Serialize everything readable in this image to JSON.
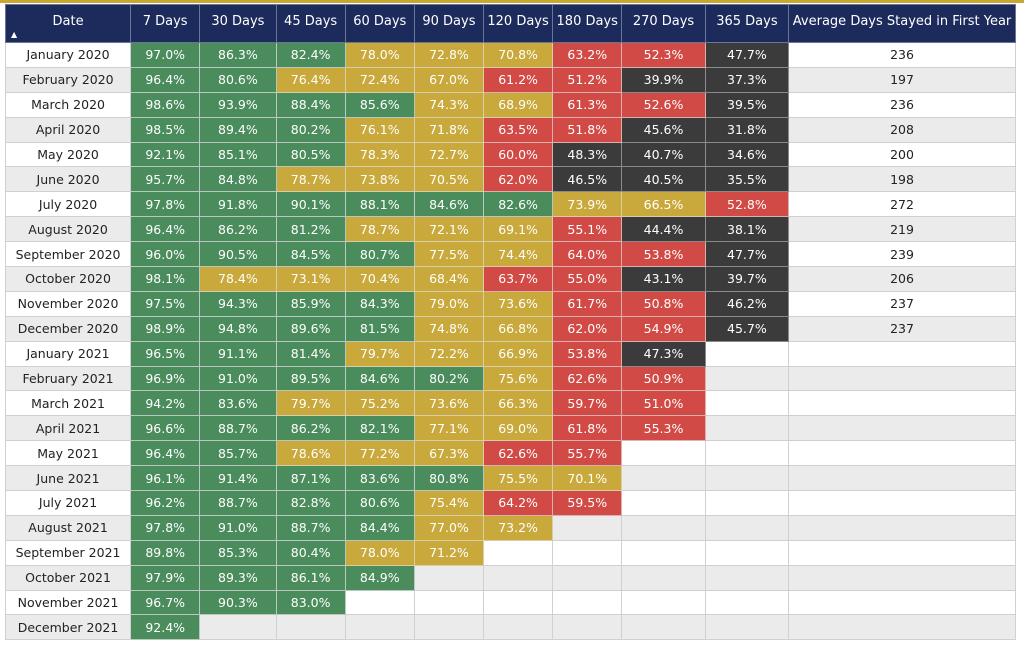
{
  "table": {
    "headers": [
      "Date",
      "7 Days",
      "30 Days",
      "45 Days",
      "60 Days",
      "90 Days",
      "120 Days",
      "180 Days",
      "270 Days",
      "365 Days",
      "Average Days Stayed in First Year"
    ],
    "sort_indicator": "▲",
    "legend_colors": {
      "green": "#4a8c5c",
      "yellow": "#c9a93c",
      "red": "#d24a45",
      "dark": "#3b3b3b",
      "header": "#1c2a5c"
    },
    "rows": [
      {
        "date": "January 2020",
        "cells": [
          [
            "97.0%",
            "g"
          ],
          [
            "86.3%",
            "g"
          ],
          [
            "82.4%",
            "g"
          ],
          [
            "78.0%",
            "y"
          ],
          [
            "72.8%",
            "y"
          ],
          [
            "70.8%",
            "y"
          ],
          [
            "63.2%",
            "r"
          ],
          [
            "52.3%",
            "r"
          ],
          [
            "47.7%",
            "k"
          ]
        ],
        "avg": "236"
      },
      {
        "date": "February 2020",
        "cells": [
          [
            "96.4%",
            "g"
          ],
          [
            "80.6%",
            "g"
          ],
          [
            "76.4%",
            "y"
          ],
          [
            "72.4%",
            "y"
          ],
          [
            "67.0%",
            "y"
          ],
          [
            "61.2%",
            "r"
          ],
          [
            "51.2%",
            "r"
          ],
          [
            "39.9%",
            "k"
          ],
          [
            "37.3%",
            "k"
          ]
        ],
        "avg": "197"
      },
      {
        "date": "March 2020",
        "cells": [
          [
            "98.6%",
            "g"
          ],
          [
            "93.9%",
            "g"
          ],
          [
            "88.4%",
            "g"
          ],
          [
            "85.6%",
            "g"
          ],
          [
            "74.3%",
            "y"
          ],
          [
            "68.9%",
            "y"
          ],
          [
            "61.3%",
            "r"
          ],
          [
            "52.6%",
            "r"
          ],
          [
            "39.5%",
            "k"
          ]
        ],
        "avg": "236"
      },
      {
        "date": "April 2020",
        "cells": [
          [
            "98.5%",
            "g"
          ],
          [
            "89.4%",
            "g"
          ],
          [
            "80.2%",
            "g"
          ],
          [
            "76.1%",
            "y"
          ],
          [
            "71.8%",
            "y"
          ],
          [
            "63.5%",
            "r"
          ],
          [
            "51.8%",
            "r"
          ],
          [
            "45.6%",
            "k"
          ],
          [
            "31.8%",
            "k"
          ]
        ],
        "avg": "208"
      },
      {
        "date": "May 2020",
        "cells": [
          [
            "92.1%",
            "g"
          ],
          [
            "85.1%",
            "g"
          ],
          [
            "80.5%",
            "g"
          ],
          [
            "78.3%",
            "y"
          ],
          [
            "72.7%",
            "y"
          ],
          [
            "60.0%",
            "r"
          ],
          [
            "48.3%",
            "k"
          ],
          [
            "40.7%",
            "k"
          ],
          [
            "34.6%",
            "k"
          ]
        ],
        "avg": "200"
      },
      {
        "date": "June 2020",
        "cells": [
          [
            "95.7%",
            "g"
          ],
          [
            "84.8%",
            "g"
          ],
          [
            "78.7%",
            "y"
          ],
          [
            "73.8%",
            "y"
          ],
          [
            "70.5%",
            "y"
          ],
          [
            "62.0%",
            "r"
          ],
          [
            "46.5%",
            "k"
          ],
          [
            "40.5%",
            "k"
          ],
          [
            "35.5%",
            "k"
          ]
        ],
        "avg": "198"
      },
      {
        "date": "July 2020",
        "cells": [
          [
            "97.8%",
            "g"
          ],
          [
            "91.8%",
            "g"
          ],
          [
            "90.1%",
            "g"
          ],
          [
            "88.1%",
            "g"
          ],
          [
            "84.6%",
            "g"
          ],
          [
            "82.6%",
            "g"
          ],
          [
            "73.9%",
            "y"
          ],
          [
            "66.5%",
            "y"
          ],
          [
            "52.8%",
            "r"
          ]
        ],
        "avg": "272"
      },
      {
        "date": "August 2020",
        "cells": [
          [
            "96.4%",
            "g"
          ],
          [
            "86.2%",
            "g"
          ],
          [
            "81.2%",
            "g"
          ],
          [
            "78.7%",
            "y"
          ],
          [
            "72.1%",
            "y"
          ],
          [
            "69.1%",
            "y"
          ],
          [
            "55.1%",
            "r"
          ],
          [
            "44.4%",
            "k"
          ],
          [
            "38.1%",
            "k"
          ]
        ],
        "avg": "219"
      },
      {
        "date": "September 2020",
        "cells": [
          [
            "96.0%",
            "g"
          ],
          [
            "90.5%",
            "g"
          ],
          [
            "84.5%",
            "g"
          ],
          [
            "80.7%",
            "g"
          ],
          [
            "77.5%",
            "y"
          ],
          [
            "74.4%",
            "y"
          ],
          [
            "64.0%",
            "r"
          ],
          [
            "53.8%",
            "r"
          ],
          [
            "47.7%",
            "k"
          ]
        ],
        "avg": "239"
      },
      {
        "date": "October 2020",
        "cells": [
          [
            "98.1%",
            "g"
          ],
          [
            "78.4%",
            "y"
          ],
          [
            "73.1%",
            "y"
          ],
          [
            "70.4%",
            "y"
          ],
          [
            "68.4%",
            "y"
          ],
          [
            "63.7%",
            "r"
          ],
          [
            "55.0%",
            "r"
          ],
          [
            "43.1%",
            "k"
          ],
          [
            "39.7%",
            "k"
          ]
        ],
        "avg": "206"
      },
      {
        "date": "November 2020",
        "cells": [
          [
            "97.5%",
            "g"
          ],
          [
            "94.3%",
            "g"
          ],
          [
            "85.9%",
            "g"
          ],
          [
            "84.3%",
            "g"
          ],
          [
            "79.0%",
            "y"
          ],
          [
            "73.6%",
            "y"
          ],
          [
            "61.7%",
            "r"
          ],
          [
            "50.8%",
            "r"
          ],
          [
            "46.2%",
            "k"
          ]
        ],
        "avg": "237"
      },
      {
        "date": "December 2020",
        "cells": [
          [
            "98.9%",
            "g"
          ],
          [
            "94.8%",
            "g"
          ],
          [
            "89.6%",
            "g"
          ],
          [
            "81.5%",
            "g"
          ],
          [
            "74.8%",
            "y"
          ],
          [
            "66.8%",
            "y"
          ],
          [
            "62.0%",
            "r"
          ],
          [
            "54.9%",
            "r"
          ],
          [
            "45.7%",
            "k"
          ]
        ],
        "avg": "237"
      },
      {
        "date": "January 2021",
        "cells": [
          [
            "96.5%",
            "g"
          ],
          [
            "91.1%",
            "g"
          ],
          [
            "81.4%",
            "g"
          ],
          [
            "79.7%",
            "y"
          ],
          [
            "72.2%",
            "y"
          ],
          [
            "66.9%",
            "y"
          ],
          [
            "53.8%",
            "r"
          ],
          [
            "47.3%",
            "k"
          ],
          [
            "",
            ""
          ]
        ],
        "avg": ""
      },
      {
        "date": "February 2021",
        "cells": [
          [
            "96.9%",
            "g"
          ],
          [
            "91.0%",
            "g"
          ],
          [
            "89.5%",
            "g"
          ],
          [
            "84.6%",
            "g"
          ],
          [
            "80.2%",
            "g"
          ],
          [
            "75.6%",
            "y"
          ],
          [
            "62.6%",
            "r"
          ],
          [
            "50.9%",
            "r"
          ],
          [
            "",
            ""
          ]
        ],
        "avg": ""
      },
      {
        "date": "March 2021",
        "cells": [
          [
            "94.2%",
            "g"
          ],
          [
            "83.6%",
            "g"
          ],
          [
            "79.7%",
            "y"
          ],
          [
            "75.2%",
            "y"
          ],
          [
            "73.6%",
            "y"
          ],
          [
            "66.3%",
            "y"
          ],
          [
            "59.7%",
            "r"
          ],
          [
            "51.0%",
            "r"
          ],
          [
            "",
            ""
          ]
        ],
        "avg": ""
      },
      {
        "date": "April 2021",
        "cells": [
          [
            "96.6%",
            "g"
          ],
          [
            "88.7%",
            "g"
          ],
          [
            "86.2%",
            "g"
          ],
          [
            "82.1%",
            "g"
          ],
          [
            "77.1%",
            "y"
          ],
          [
            "69.0%",
            "y"
          ],
          [
            "61.8%",
            "r"
          ],
          [
            "55.3%",
            "r"
          ],
          [
            "",
            ""
          ]
        ],
        "avg": ""
      },
      {
        "date": "May 2021",
        "cells": [
          [
            "96.4%",
            "g"
          ],
          [
            "85.7%",
            "g"
          ],
          [
            "78.6%",
            "y"
          ],
          [
            "77.2%",
            "y"
          ],
          [
            "67.3%",
            "y"
          ],
          [
            "62.6%",
            "r"
          ],
          [
            "55.7%",
            "r"
          ],
          [
            "",
            ""
          ],
          [
            "",
            ""
          ]
        ],
        "avg": ""
      },
      {
        "date": "June 2021",
        "cells": [
          [
            "96.1%",
            "g"
          ],
          [
            "91.4%",
            "g"
          ],
          [
            "87.1%",
            "g"
          ],
          [
            "83.6%",
            "g"
          ],
          [
            "80.8%",
            "g"
          ],
          [
            "75.5%",
            "y"
          ],
          [
            "70.1%",
            "y"
          ],
          [
            "",
            ""
          ],
          [
            "",
            ""
          ]
        ],
        "avg": ""
      },
      {
        "date": "July 2021",
        "cells": [
          [
            "96.2%",
            "g"
          ],
          [
            "88.7%",
            "g"
          ],
          [
            "82.8%",
            "g"
          ],
          [
            "80.6%",
            "g"
          ],
          [
            "75.4%",
            "y"
          ],
          [
            "64.2%",
            "r"
          ],
          [
            "59.5%",
            "r"
          ],
          [
            "",
            ""
          ],
          [
            "",
            ""
          ]
        ],
        "avg": ""
      },
      {
        "date": "August 2021",
        "cells": [
          [
            "97.8%",
            "g"
          ],
          [
            "91.0%",
            "g"
          ],
          [
            "88.7%",
            "g"
          ],
          [
            "84.4%",
            "g"
          ],
          [
            "77.0%",
            "y"
          ],
          [
            "73.2%",
            "y"
          ],
          [
            "",
            ""
          ],
          [
            "",
            ""
          ],
          [
            "",
            ""
          ]
        ],
        "avg": ""
      },
      {
        "date": "September 2021",
        "cells": [
          [
            "89.8%",
            "g"
          ],
          [
            "85.3%",
            "g"
          ],
          [
            "80.4%",
            "g"
          ],
          [
            "78.0%",
            "y"
          ],
          [
            "71.2%",
            "y"
          ],
          [
            "",
            ""
          ],
          [
            "",
            ""
          ],
          [
            "",
            ""
          ],
          [
            "",
            ""
          ]
        ],
        "avg": ""
      },
      {
        "date": "October 2021",
        "cells": [
          [
            "97.9%",
            "g"
          ],
          [
            "89.3%",
            "g"
          ],
          [
            "86.1%",
            "g"
          ],
          [
            "84.9%",
            "g"
          ],
          [
            "",
            ""
          ],
          [
            "",
            ""
          ],
          [
            "",
            ""
          ],
          [
            "",
            ""
          ],
          [
            "",
            ""
          ]
        ],
        "avg": ""
      },
      {
        "date": "November 2021",
        "cells": [
          [
            "96.7%",
            "g"
          ],
          [
            "90.3%",
            "g"
          ],
          [
            "83.0%",
            "g"
          ],
          [
            "",
            ""
          ],
          [
            "",
            ""
          ],
          [
            "",
            ""
          ],
          [
            "",
            ""
          ],
          [
            "",
            ""
          ],
          [
            "",
            ""
          ]
        ],
        "avg": ""
      },
      {
        "date": "December 2021",
        "cells": [
          [
            "92.4%",
            "g"
          ],
          [
            "",
            ""
          ],
          [
            "",
            ""
          ],
          [
            "",
            ""
          ],
          [
            "",
            ""
          ],
          [
            "",
            ""
          ],
          [
            "",
            ""
          ],
          [
            "",
            ""
          ],
          [
            "",
            ""
          ]
        ],
        "avg": ""
      }
    ]
  }
}
